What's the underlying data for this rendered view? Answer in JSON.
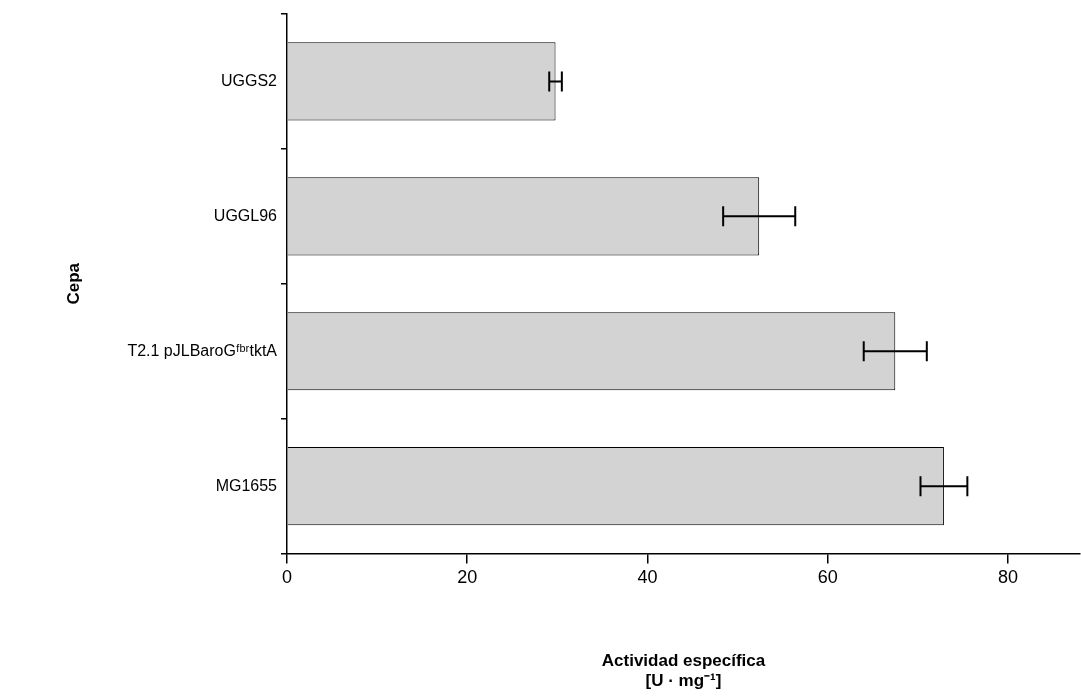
{
  "chart_data": {
    "type": "bar",
    "orientation": "horizontal",
    "xlabel": "Actividad específica\n[U · mg⁻¹]",
    "ylabel": "Cepa",
    "categories": [
      "UGGS2",
      "UGGL96",
      "T2.1 pJLBaroGᶠᵇʳtktA",
      "MG1655"
    ],
    "values": [
      29.8,
      52.4,
      67.5,
      72.9
    ],
    "errors": [
      0.7,
      4.0,
      3.5,
      2.6
    ],
    "color": "#d3d3d3",
    "xlim": [
      0,
      88
    ],
    "xticks": [
      0,
      20,
      40,
      60,
      80
    ],
    "grid": false,
    "legend": false
  }
}
